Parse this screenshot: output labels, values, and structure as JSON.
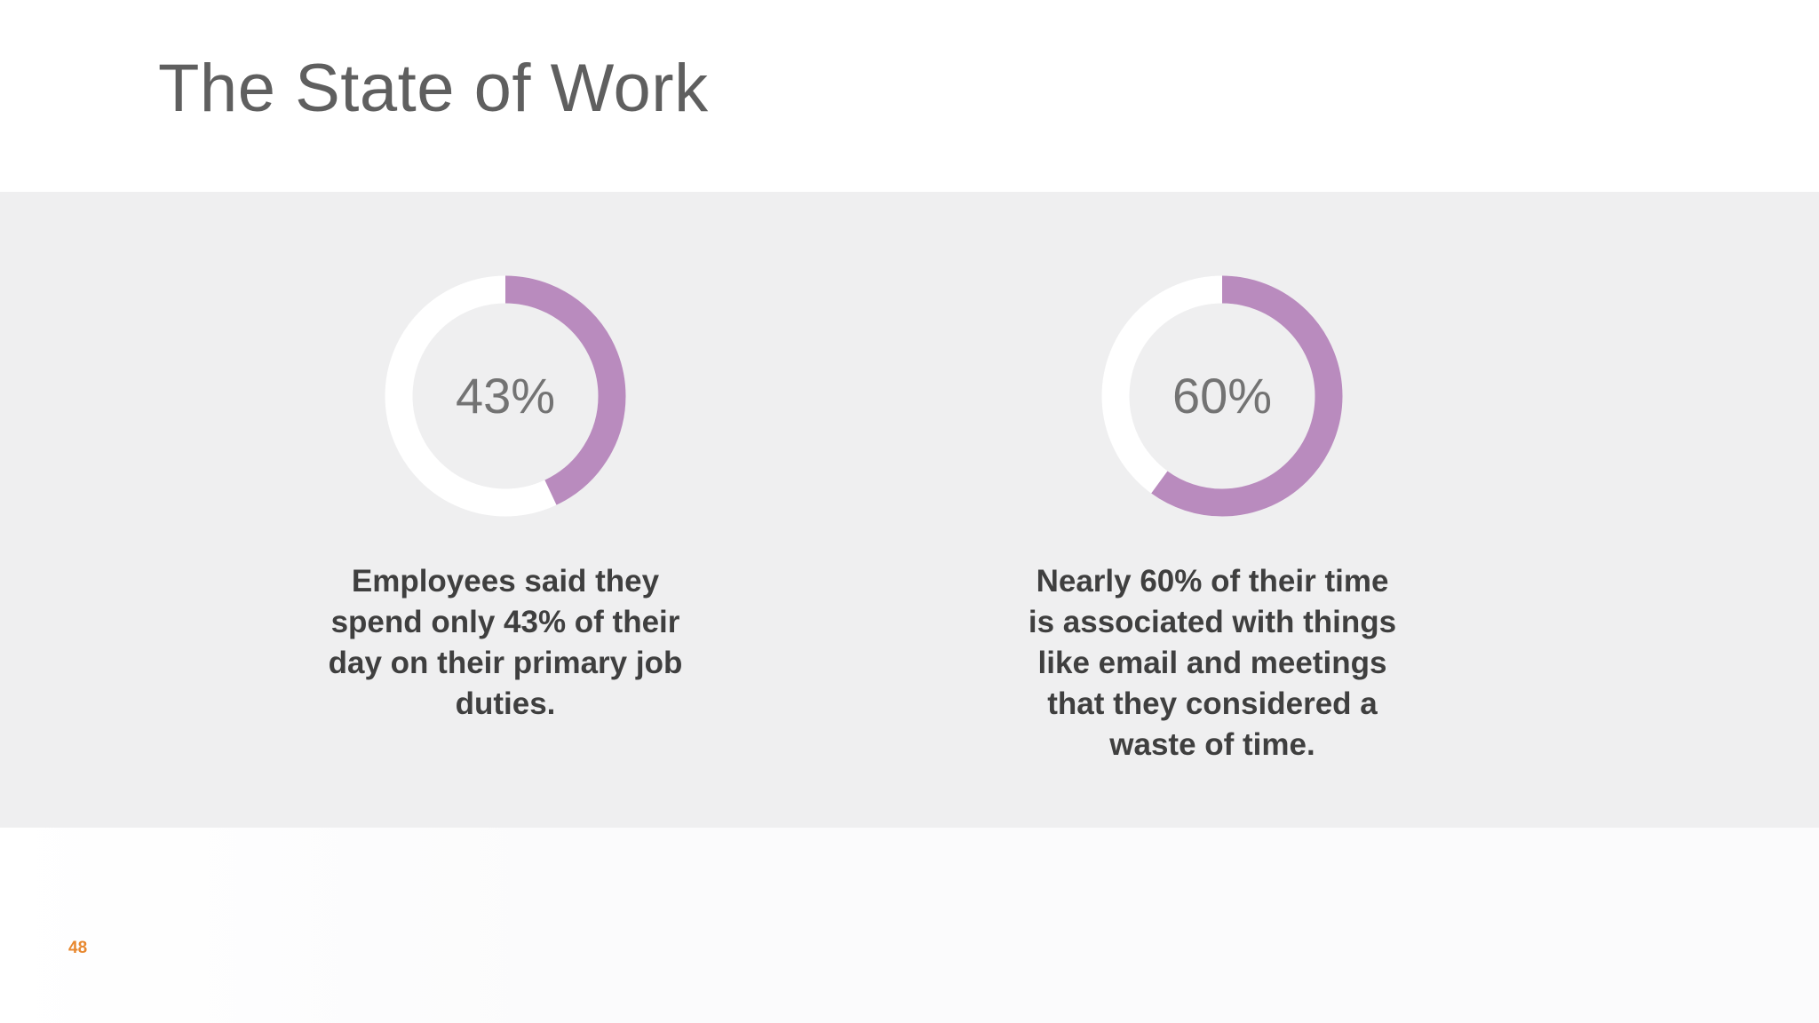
{
  "slide": {
    "title": "The State of Work",
    "page_number": "48"
  },
  "colors": {
    "accent_purple": "#b98bbe",
    "track": "#ffffff",
    "band": "#efeff0",
    "title": "#5f5f5f",
    "page_number": "#e8882f"
  },
  "stats": [
    {
      "value_label": "43%",
      "caption": "Employees said they spend only 43% of their day on their primary job duties."
    },
    {
      "value_label": "60%",
      "caption": "Nearly 60% of their time is associated with things like email and meetings that they considered a waste of time."
    }
  ],
  "chart_data": [
    {
      "type": "pie",
      "style": "donut",
      "values": [
        43,
        57
      ],
      "labels": [
        "43%",
        ""
      ],
      "center_label": "43%"
    },
    {
      "type": "pie",
      "style": "donut",
      "values": [
        60,
        40
      ],
      "labels": [
        "60%",
        ""
      ],
      "center_label": "60%"
    }
  ]
}
